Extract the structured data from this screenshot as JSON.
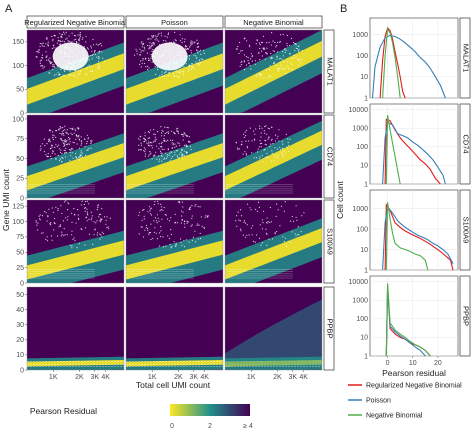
{
  "panels": {
    "a_label": "A",
    "b_label": "B"
  },
  "chart_data": [
    {
      "type": "heatmap",
      "panel": "A",
      "description_free": true,
      "columns": [
        "Regularized Negative Binomial",
        "Poisson",
        "Negative Binomial"
      ],
      "rows": [
        "MALAT1",
        "CD74",
        "S100A9",
        "PPBP"
      ],
      "xlabel": "Total cell UMI count",
      "ylabel": "Gene UMI count",
      "x_scale": "log",
      "x_ticks": [
        "1K",
        "2K",
        "3K",
        "4K"
      ],
      "x_tick_values": [
        1000,
        2000,
        3000,
        4000
      ],
      "x_range": [
        500,
        6500
      ],
      "y_ticks": {
        "MALAT1": [
          0,
          50,
          100,
          150
        ],
        "CD74": [
          0,
          25,
          50,
          75,
          100
        ],
        "S100A9": [
          0,
          25,
          50,
          75,
          100,
          125
        ],
        "PPBP": [
          0,
          10,
          20,
          30,
          40,
          50
        ]
      },
      "y_range": {
        "MALAT1": [
          0,
          175
        ],
        "CD74": [
          0,
          105
        ],
        "S100A9": [
          0,
          135
        ],
        "PPBP": [
          0,
          55
        ]
      },
      "colorbar": {
        "title": "Pearson Residual",
        "ticks": [
          "0",
          "2",
          "≥ 4"
        ],
        "range": [
          0,
          4
        ]
      },
      "colors": {
        "low": "#fde725",
        "mid": "#21908c",
        "high": "#440154"
      }
    },
    {
      "type": "line",
      "panel": "B",
      "xlabel": "Pearson residual",
      "ylabel": "Cell count",
      "y_scale": "log",
      "x_ticks": [
        0,
        10,
        20
      ],
      "x_range": [
        -7,
        28
      ],
      "rows": [
        {
          "gene": "MALAT1",
          "y_ticks": [
            1,
            10,
            100,
            1000
          ],
          "y_range": [
            1,
            6000
          ]
        },
        {
          "gene": "CD74",
          "y_ticks": [
            1,
            10,
            100,
            1000,
            10000
          ],
          "y_range": [
            1,
            20000
          ]
        },
        {
          "gene": "S100A9",
          "y_ticks": [
            1,
            10,
            100,
            1000
          ],
          "y_range": [
            1,
            8000
          ]
        },
        {
          "gene": "PPBP",
          "y_ticks": [
            1,
            10,
            100,
            1000,
            10000
          ],
          "y_range": [
            1,
            20000
          ]
        }
      ],
      "series": [
        {
          "name": "Regularized Negative Binomial",
          "color": "#e41a1c"
        },
        {
          "name": "Poisson",
          "color": "#377eb8"
        },
        {
          "name": "Negative Binomial",
          "color": "#4daf4a"
        }
      ],
      "series_values": {
        "MALAT1": {
          "Regularized Negative Binomial": [
            [
              -3,
              1
            ],
            [
              -2,
              60
            ],
            [
              -1,
              800
            ],
            [
              0,
              2000
            ],
            [
              1,
              1500
            ],
            [
              2,
              600
            ],
            [
              3,
              150
            ],
            [
              4,
              40
            ],
            [
              5,
              10
            ],
            [
              6,
              2
            ],
            [
              7,
              1
            ]
          ],
          "Poisson": [
            [
              -6,
              1
            ],
            [
              -5,
              30
            ],
            [
              -3,
              250
            ],
            [
              -1,
              700
            ],
            [
              1,
              900
            ],
            [
              3,
              800
            ],
            [
              5,
              600
            ],
            [
              7,
              400
            ],
            [
              9,
              250
            ],
            [
              11,
              150
            ],
            [
              13,
              80
            ],
            [
              15,
              50
            ],
            [
              17,
              25
            ],
            [
              19,
              10
            ],
            [
              21,
              4
            ],
            [
              23,
              1
            ]
          ],
          "Negative Binomial": [
            [
              -2,
              1
            ],
            [
              -1,
              100
            ],
            [
              0,
              1800
            ],
            [
              1,
              1200
            ],
            [
              2,
              400
            ],
            [
              3,
              80
            ],
            [
              4,
              10
            ],
            [
              5,
              1
            ]
          ]
        },
        "CD74": {
          "Regularized Negative Binomial": [
            [
              -1,
              1
            ],
            [
              -0.5,
              3000
            ],
            [
              1,
              2500
            ],
            [
              3,
              800
            ],
            [
              5,
              300
            ],
            [
              7,
              150
            ],
            [
              9,
              80
            ],
            [
              11,
              40
            ],
            [
              13,
              20
            ],
            [
              15,
              12
            ],
            [
              17,
              6
            ],
            [
              19,
              2
            ],
            [
              21,
              1
            ]
          ],
          "Poisson": [
            [
              -2,
              1
            ],
            [
              -1,
              300
            ],
            [
              0,
              2000
            ],
            [
              2,
              1500
            ],
            [
              4,
              500
            ],
            [
              6,
              400
            ],
            [
              8,
              300
            ],
            [
              10,
              180
            ],
            [
              12,
              120
            ],
            [
              14,
              70
            ],
            [
              16,
              40
            ],
            [
              18,
              20
            ],
            [
              20,
              8
            ],
            [
              22,
              3
            ],
            [
              23,
              1
            ]
          ],
          "Negative Binomial": [
            [
              -0.5,
              1
            ],
            [
              0,
              5000
            ],
            [
              1,
              800
            ],
            [
              2,
              150
            ],
            [
              3,
              30
            ],
            [
              4,
              5
            ],
            [
              5,
              1
            ]
          ]
        },
        "S100A9": {
          "Regularized Negative Binomial": [
            [
              -1,
              1
            ],
            [
              -0.5,
              1500
            ],
            [
              1,
              800
            ],
            [
              3,
              200
            ],
            [
              5,
              120
            ],
            [
              7,
              80
            ],
            [
              9,
              60
            ],
            [
              11,
              45
            ],
            [
              13,
              35
            ],
            [
              15,
              25
            ],
            [
              17,
              18
            ],
            [
              19,
              12
            ],
            [
              21,
              8
            ],
            [
              23,
              5
            ],
            [
              25,
              3
            ],
            [
              26,
              1
            ]
          ],
          "Poisson": [
            [
              -2,
              1
            ],
            [
              -1,
              200
            ],
            [
              0,
              1200
            ],
            [
              2,
              600
            ],
            [
              4,
              250
            ],
            [
              6,
              150
            ],
            [
              8,
              100
            ],
            [
              10,
              70
            ],
            [
              12,
              50
            ],
            [
              14,
              40
            ],
            [
              16,
              30
            ],
            [
              18,
              20
            ],
            [
              20,
              15
            ],
            [
              22,
              10
            ],
            [
              24,
              6
            ],
            [
              26,
              2
            ]
          ],
          "Negative Binomial": [
            [
              -0.5,
              1
            ],
            [
              0,
              2000
            ],
            [
              1,
              300
            ],
            [
              2,
              60
            ],
            [
              3,
              20
            ],
            [
              5,
              12
            ],
            [
              7,
              10
            ],
            [
              9,
              8
            ],
            [
              11,
              6
            ],
            [
              13,
              5
            ],
            [
              15,
              3
            ],
            [
              16,
              1
            ]
          ]
        },
        "PPBP": {
          "Regularized Negative Binomial": [
            [
              -0.5,
              1
            ],
            [
              0,
              6000
            ],
            [
              1,
              30
            ],
            [
              3,
              15
            ],
            [
              5,
              10
            ],
            [
              7,
              8
            ],
            [
              9,
              5
            ],
            [
              11,
              4
            ],
            [
              13,
              3
            ],
            [
              15,
              2
            ],
            [
              17,
              1
            ]
          ],
          "Poisson": [
            [
              -0.5,
              1
            ],
            [
              0,
              5000
            ],
            [
              1,
              40
            ],
            [
              3,
              20
            ],
            [
              5,
              12
            ],
            [
              7,
              8
            ],
            [
              9,
              5
            ],
            [
              11,
              3
            ],
            [
              13,
              2
            ],
            [
              15,
              1
            ]
          ],
          "Negative Binomial": [
            [
              -0.5,
              1
            ],
            [
              0,
              8000
            ],
            [
              1,
              60
            ],
            [
              3,
              25
            ],
            [
              5,
              15
            ],
            [
              7,
              10
            ],
            [
              9,
              6
            ],
            [
              11,
              4
            ],
            [
              13,
              3
            ],
            [
              15,
              2
            ],
            [
              17,
              1
            ]
          ]
        }
      },
      "legend_position": "bottom"
    }
  ]
}
